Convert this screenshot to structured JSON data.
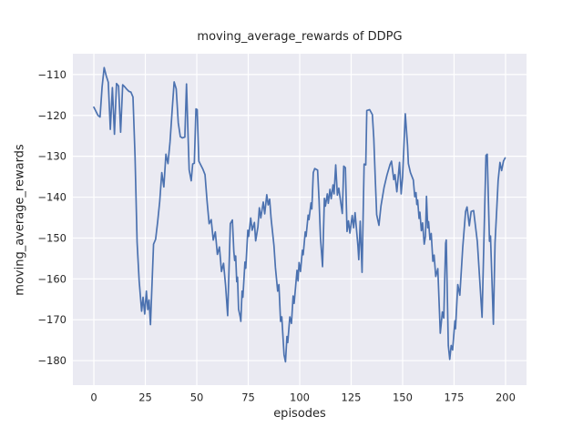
{
  "figure": {
    "title": "moving_average_rewards of DDPG",
    "xlabel": "episodes",
    "ylabel": "moving_average_rewards"
  },
  "chart_data": {
    "type": "line",
    "title": "moving_average_rewards of DDPG",
    "xlabel": "episodes",
    "ylabel": "moving_average_rewards",
    "style": "seaborn-darkgrid",
    "grid": true,
    "legend": false,
    "plot_background": "#eaeaf2",
    "gridline_color": "#ffffff",
    "line_color": "#4c72b0",
    "text_color": "#262626",
    "x_ticks": [
      0,
      25,
      50,
      75,
      100,
      125,
      150,
      175,
      200
    ],
    "y_ticks": [
      -110,
      -120,
      -130,
      -140,
      -150,
      -160,
      -170,
      -180
    ],
    "xlim": [
      -10.2,
      210.2
    ],
    "ylim": [
      -186.0,
      -104.9
    ],
    "series": [
      {
        "name": "moving_average_rewards",
        "points": [
          [
            0,
            -118.0
          ],
          [
            1,
            -119.0
          ],
          [
            2,
            -120.0
          ],
          [
            3,
            -120.4
          ],
          [
            4,
            -113.0
          ],
          [
            5,
            -108.3
          ],
          [
            6,
            -110.3
          ],
          [
            7,
            -111.9
          ],
          [
            8,
            -123.4
          ],
          [
            9,
            -113.2
          ],
          [
            10,
            -124.6
          ],
          [
            11,
            -112.2
          ],
          [
            12,
            -112.8
          ],
          [
            13,
            -124.1
          ],
          [
            14,
            -112.5
          ],
          [
            15,
            -113.0
          ],
          [
            16,
            -113.6
          ],
          [
            17,
            -114.1
          ],
          [
            18,
            -114.3
          ],
          [
            19,
            -115.5
          ],
          [
            20,
            -130.0
          ],
          [
            21,
            -151.0
          ],
          [
            22,
            -160.5
          ],
          [
            23.2,
            -167.9
          ],
          [
            23.9,
            -164.5
          ],
          [
            24.7,
            -168.6
          ],
          [
            25.5,
            -163.0
          ],
          [
            26.2,
            -167.5
          ],
          [
            26.8,
            -165.2
          ],
          [
            27.5,
            -171.2
          ],
          [
            29,
            -151.5
          ],
          [
            30,
            -150.3
          ],
          [
            31,
            -146.0
          ],
          [
            32,
            -141.0
          ],
          [
            33,
            -134.0
          ],
          [
            34,
            -137.5
          ],
          [
            35,
            -129.5
          ],
          [
            36,
            -131.8
          ],
          [
            37,
            -126.5
          ],
          [
            38,
            -119.0
          ],
          [
            39,
            -111.8
          ],
          [
            40,
            -113.5
          ],
          [
            41,
            -121.8
          ],
          [
            42,
            -125.2
          ],
          [
            43,
            -125.5
          ],
          [
            44.2,
            -125.3
          ],
          [
            45,
            -112.3
          ],
          [
            45.8,
            -125.5
          ],
          [
            46.3,
            -133.3
          ],
          [
            47.3,
            -136.0
          ],
          [
            48,
            -131.9
          ],
          [
            48.8,
            -131.7
          ],
          [
            49.6,
            -118.4
          ],
          [
            50.2,
            -118.6
          ],
          [
            51,
            -131.2
          ],
          [
            52,
            -132.2
          ],
          [
            53,
            -133.2
          ],
          [
            54,
            -134.5
          ],
          [
            55,
            -141.0
          ],
          [
            56,
            -146.5
          ],
          [
            57,
            -145.5
          ],
          [
            58,
            -150.5
          ],
          [
            59,
            -148.5
          ],
          [
            60,
            -154.0
          ],
          [
            61,
            -152.2
          ],
          [
            62,
            -158.2
          ],
          [
            63,
            -156.2
          ],
          [
            64,
            -161.7
          ],
          [
            65,
            -169.0
          ],
          [
            66.3,
            -146.5
          ],
          [
            67.3,
            -145.6
          ],
          [
            68,
            -153.3
          ],
          [
            68.4,
            -155.5
          ],
          [
            68.9,
            -154.4
          ],
          [
            69.4,
            -160.7
          ],
          [
            69.8,
            -159.6
          ],
          [
            70.3,
            -167.4
          ],
          [
            71.1,
            -169.3
          ],
          [
            71.4,
            -170.4
          ],
          [
            72,
            -163.0
          ],
          [
            72.4,
            -164.5
          ],
          [
            73.4,
            -155.9
          ],
          [
            73.8,
            -157.4
          ],
          [
            74.8,
            -148.1
          ],
          [
            75.2,
            -149.6
          ],
          [
            76.2,
            -145.1
          ],
          [
            76.9,
            -148.1
          ],
          [
            78,
            -146.2
          ],
          [
            78.6,
            -150.7
          ],
          [
            79.7,
            -147.3
          ],
          [
            80.4,
            -142.6
          ],
          [
            81.1,
            -145.1
          ],
          [
            82.3,
            -141.2
          ],
          [
            83,
            -144.1
          ],
          [
            84,
            -139.4
          ],
          [
            84.7,
            -141.9
          ],
          [
            85.4,
            -140.5
          ],
          [
            86.1,
            -145.2
          ],
          [
            87.5,
            -151.9
          ],
          [
            88.2,
            -157.2
          ],
          [
            89.3,
            -163.0
          ],
          [
            89.9,
            -161.4
          ],
          [
            90.7,
            -170.4
          ],
          [
            91.3,
            -169.3
          ],
          [
            92.4,
            -178.6
          ],
          [
            93.1,
            -180.3
          ],
          [
            93.8,
            -174.1
          ],
          [
            94.2,
            -175.6
          ],
          [
            95.2,
            -169.3
          ],
          [
            96,
            -170.9
          ],
          [
            96.8,
            -164.2
          ],
          [
            97.3,
            -166.0
          ],
          [
            98.7,
            -157.9
          ],
          [
            99.2,
            -160.5
          ],
          [
            99.7,
            -156.0
          ],
          [
            100.4,
            -158.2
          ],
          [
            101.3,
            -153.0
          ],
          [
            101.7,
            -154.1
          ],
          [
            102.7,
            -148.5
          ],
          [
            103.1,
            -149.6
          ],
          [
            104.1,
            -144.4
          ],
          [
            104.5,
            -145.5
          ],
          [
            105.5,
            -141.4
          ],
          [
            105.9,
            -142.9
          ],
          [
            106.6,
            -134.0
          ],
          [
            107.3,
            -133.0
          ],
          [
            108.7,
            -133.4
          ],
          [
            109.4,
            -140.7
          ],
          [
            110.1,
            -150.0
          ],
          [
            111.1,
            -157.0
          ],
          [
            112,
            -140.3
          ],
          [
            112.5,
            -142.2
          ],
          [
            113.4,
            -139.2
          ],
          [
            113.9,
            -141.5
          ],
          [
            114.7,
            -138.1
          ],
          [
            115.3,
            -140.4
          ],
          [
            116.2,
            -137.0
          ],
          [
            116.7,
            -139.2
          ],
          [
            117.5,
            -132.1
          ],
          [
            118.3,
            -139.5
          ],
          [
            119,
            -137.8
          ],
          [
            120,
            -141.5
          ],
          [
            120.7,
            -144.0
          ],
          [
            121.4,
            -132.4
          ],
          [
            122.2,
            -132.8
          ],
          [
            123,
            -148.4
          ],
          [
            123.7,
            -145.8
          ],
          [
            124.4,
            -148.8
          ],
          [
            125.5,
            -144.5
          ],
          [
            126.2,
            -147.5
          ],
          [
            126.9,
            -143.8
          ],
          [
            128.3,
            -152.0
          ],
          [
            128.7,
            -155.3
          ],
          [
            129.4,
            -145.9
          ],
          [
            130.3,
            -158.4
          ],
          [
            131.3,
            -131.9
          ],
          [
            132.1,
            -132.1
          ],
          [
            132.6,
            -118.8
          ],
          [
            134,
            -118.6
          ],
          [
            135.3,
            -119.8
          ],
          [
            136,
            -125.6
          ],
          [
            136.7,
            -135.3
          ],
          [
            137.4,
            -144.3
          ],
          [
            138.5,
            -146.9
          ],
          [
            139.5,
            -142.1
          ],
          [
            141,
            -137.6
          ],
          [
            142.4,
            -134.6
          ],
          [
            143.9,
            -132.0
          ],
          [
            144.6,
            -131.2
          ],
          [
            145.7,
            -135.7
          ],
          [
            146.3,
            -134.5
          ],
          [
            147.2,
            -138.7
          ],
          [
            148.5,
            -131.5
          ],
          [
            149.3,
            -139.2
          ],
          [
            150,
            -134.9
          ],
          [
            151.3,
            -119.6
          ],
          [
            152.4,
            -127.4
          ],
          [
            152.8,
            -131.8
          ],
          [
            153.8,
            -134.0
          ],
          [
            155.2,
            -135.8
          ],
          [
            155.9,
            -139.9
          ],
          [
            156.5,
            -138.9
          ],
          [
            156.9,
            -141.8
          ],
          [
            157.3,
            -140.7
          ],
          [
            158,
            -145.2
          ],
          [
            158.4,
            -143.7
          ],
          [
            159.1,
            -148.2
          ],
          [
            159.7,
            -146.3
          ],
          [
            160.5,
            -151.5
          ],
          [
            161.1,
            -149.6
          ],
          [
            161.6,
            -139.8
          ],
          [
            162.2,
            -147.5
          ],
          [
            162.6,
            -146.0
          ],
          [
            163.3,
            -150.4
          ],
          [
            163.9,
            -148.9
          ],
          [
            164.7,
            -155.7
          ],
          [
            165.3,
            -154.2
          ],
          [
            166.1,
            -159.4
          ],
          [
            167.1,
            -157.5
          ],
          [
            168.3,
            -173.3
          ],
          [
            169.3,
            -168.1
          ],
          [
            170,
            -169.6
          ],
          [
            170.9,
            -151.3
          ],
          [
            171.2,
            -150.5
          ],
          [
            172.2,
            -176.3
          ],
          [
            172.9,
            -179.7
          ],
          [
            173.6,
            -176.3
          ],
          [
            174.3,
            -177.4
          ],
          [
            175.4,
            -170.3
          ],
          [
            175.7,
            -172.2
          ],
          [
            176.8,
            -161.4
          ],
          [
            177.8,
            -164.0
          ],
          [
            179.2,
            -152.4
          ],
          [
            180.6,
            -143.5
          ],
          [
            181.3,
            -142.4
          ],
          [
            182.4,
            -147.0
          ],
          [
            183.3,
            -143.5
          ],
          [
            184.5,
            -143.3
          ],
          [
            186.3,
            -150.9
          ],
          [
            188.6,
            -169.4
          ],
          [
            190.5,
            -129.8
          ],
          [
            191.1,
            -129.5
          ],
          [
            192.2,
            -150.8
          ],
          [
            192.7,
            -149.5
          ],
          [
            194.1,
            -171.1
          ],
          [
            194.9,
            -151.2
          ],
          [
            195.8,
            -142.3
          ],
          [
            196.4,
            -136.0
          ],
          [
            197.3,
            -131.5
          ],
          [
            198.1,
            -133.5
          ],
          [
            199,
            -131.2
          ],
          [
            199.8,
            -130.4
          ]
        ]
      }
    ]
  }
}
